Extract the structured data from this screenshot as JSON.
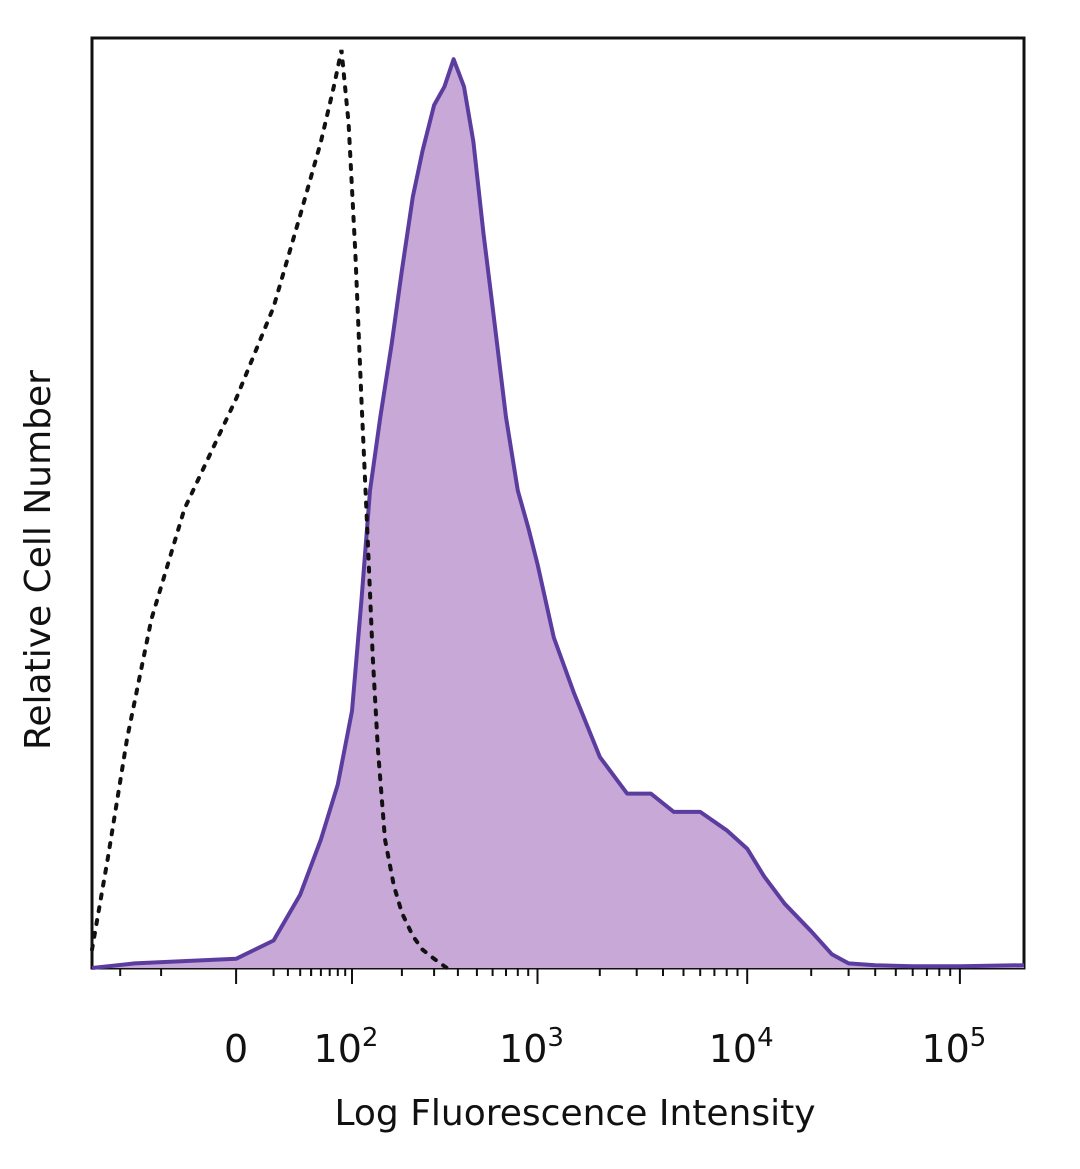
{
  "chart_data": {
    "type": "area",
    "title": "",
    "xlabel": "Log Fluorescence Intensity",
    "ylabel": "Relative Cell Number",
    "x_scale": "biexponential (log)",
    "xlim": [
      -150,
      200000
    ],
    "ylim": [
      0,
      100
    ],
    "grid": false,
    "legend": "none",
    "x_ticks": [
      {
        "value": 0,
        "base": "0",
        "exp": ""
      },
      {
        "value": 100,
        "base": "10",
        "exp": "2"
      },
      {
        "value": 1000,
        "base": "10",
        "exp": "3"
      },
      {
        "value": 10000,
        "base": "10",
        "exp": "4"
      },
      {
        "value": 100000,
        "base": "10",
        "exp": "5"
      }
    ],
    "series": [
      {
        "style": "filled",
        "color": "#5b3da0",
        "fill": "#c8a8d6",
        "x": [
          -150,
          -80,
          0,
          20,
          40,
          60,
          80,
          100,
          115,
          130,
          150,
          175,
          200,
          230,
          260,
          300,
          340,
          380,
          430,
          480,
          540,
          600,
          700,
          800,
          900,
          1000,
          1200,
          1500,
          2000,
          2700,
          3500,
          4500,
          6000,
          8000,
          10000,
          12000,
          15000,
          20000,
          25000,
          30000,
          40000,
          60000,
          100000,
          200000
        ],
        "y": [
          0,
          0.5,
          1,
          3,
          8,
          14,
          20,
          28,
          40,
          52,
          60,
          68,
          76,
          84,
          89,
          94,
          96,
          99,
          96,
          90,
          80,
          72,
          60,
          52,
          48,
          44,
          36,
          30,
          23,
          19,
          19,
          17,
          17,
          15,
          13,
          10,
          7,
          4,
          1.5,
          0.5,
          0.3,
          0.2,
          0.2,
          0.3
        ]
      },
      {
        "style": "dotted",
        "color": "#111111",
        "x": [
          -150,
          -120,
          -90,
          -60,
          -30,
          0,
          20,
          40,
          60,
          75,
          85,
          95,
          105,
          115,
          125,
          135,
          145,
          160,
          180,
          200,
          230,
          260,
          300,
          350
        ],
        "y": [
          2,
          12,
          25,
          38,
          50,
          62,
          72,
          82,
          90,
          96,
          100,
          92,
          78,
          62,
          48,
          34,
          24,
          14,
          9,
          6,
          3.5,
          2,
          1,
          0
        ]
      }
    ]
  }
}
